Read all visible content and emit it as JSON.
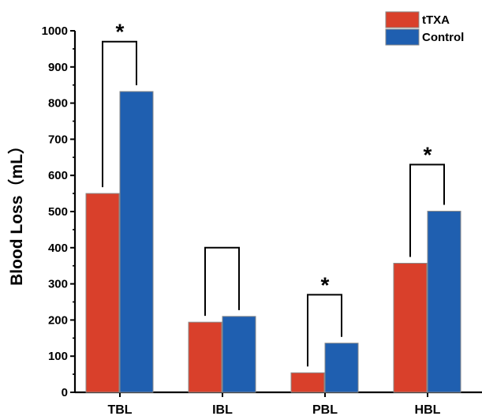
{
  "chart_data": {
    "type": "bar",
    "categories": [
      "TBL",
      "IBL",
      "PBL",
      "HBL"
    ],
    "series": [
      {
        "name": "tTXA",
        "values": [
          550,
          194,
          54,
          357
        ],
        "color": "#d9402b"
      },
      {
        "name": "Control",
        "values": [
          832,
          210,
          136,
          501
        ],
        "color": "#1f5fb0"
      }
    ],
    "ylabel": "Blood Loss（mL）",
    "ylim": [
      0,
      1000
    ],
    "yticks": [
      0,
      100,
      200,
      300,
      400,
      500,
      600,
      700,
      800,
      900,
      1000
    ],
    "grid": false,
    "legend": "top-right",
    "annotations": [
      {
        "category": "TBL",
        "bracket_top": 970,
        "label": "*"
      },
      {
        "category": "IBL",
        "bracket_top": 400,
        "label": ""
      },
      {
        "category": "PBL",
        "bracket_top": 270,
        "label": "*"
      },
      {
        "category": "HBL",
        "bracket_top": 630,
        "label": "*"
      }
    ]
  }
}
